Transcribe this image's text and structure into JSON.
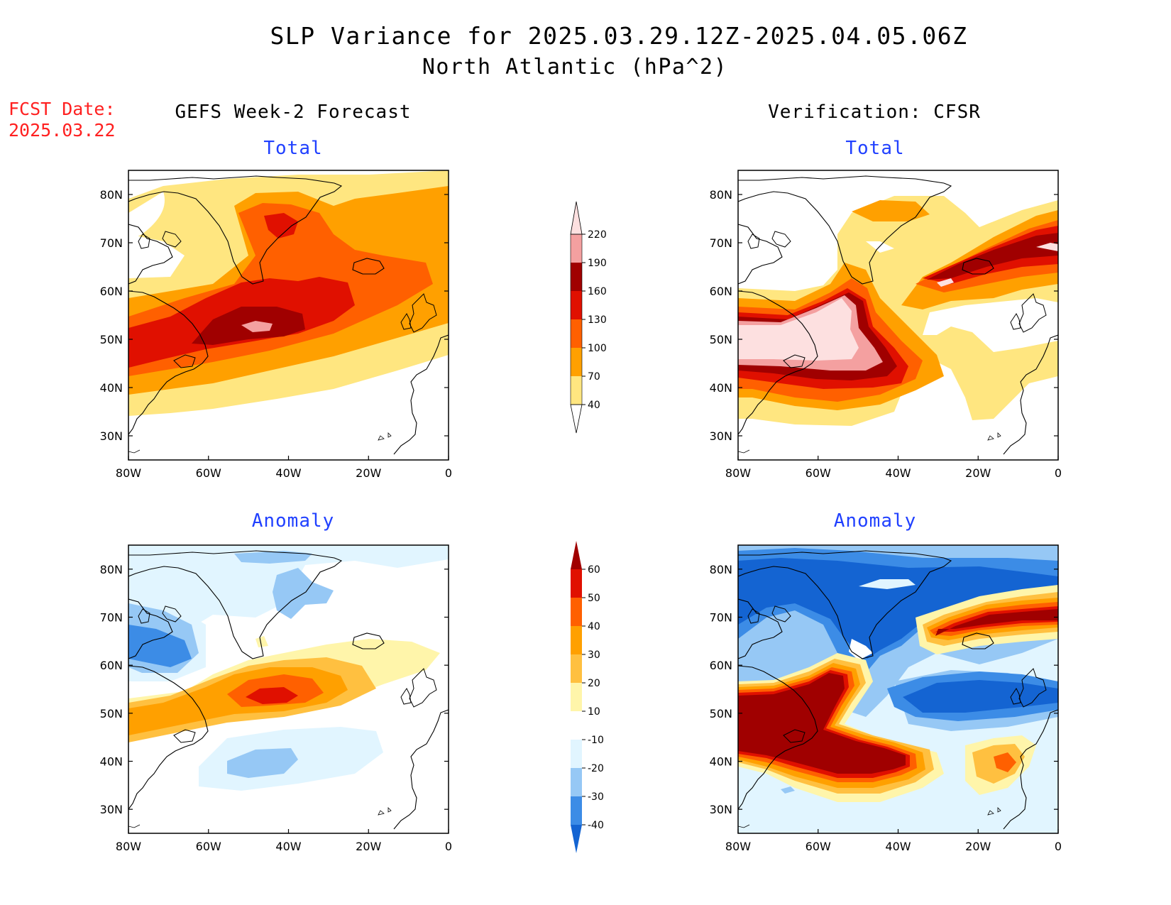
{
  "title": "SLP Variance for 2025.03.29.12Z-2025.04.05.06Z",
  "subtitle": "North Atlantic (hPa^2)",
  "fcst_label": "FCST Date:",
  "fcst_date": "2025.03.22",
  "column_titles": [
    "GEFS Week-2 Forecast",
    "Verification: CFSR"
  ],
  "row_titles": [
    "Total",
    "Anomaly"
  ],
  "lon_ticks": [
    "80W",
    "60W",
    "40W",
    "20W",
    "0"
  ],
  "lat_ticks": [
    "30N",
    "40N",
    "50N",
    "60N",
    "70N",
    "80N"
  ],
  "colors": {
    "title": "#000000",
    "fcst": "#ff2020",
    "panel_title": "#2040ff"
  },
  "total_colorbar": {
    "labels": [
      "40",
      "70",
      "100",
      "130",
      "160",
      "190",
      "220"
    ],
    "colors": [
      "#ffe680",
      "#ffa000",
      "#ff6000",
      "#e01000",
      "#a00000",
      "#f4a0a0",
      "#fde0e0"
    ]
  },
  "anomaly_colorbar": {
    "labels": [
      "-40",
      "-30",
      "-20",
      "-10",
      "10",
      "20",
      "30",
      "40",
      "50",
      "60"
    ],
    "colors": [
      "#1464d2",
      "#3c8ce6",
      "#96c8f5",
      "#e1f5ff",
      "#ffffff",
      "#fff5aa",
      "#ffc040",
      "#ffa000",
      "#ff6000",
      "#e01000",
      "#a00000"
    ]
  }
}
